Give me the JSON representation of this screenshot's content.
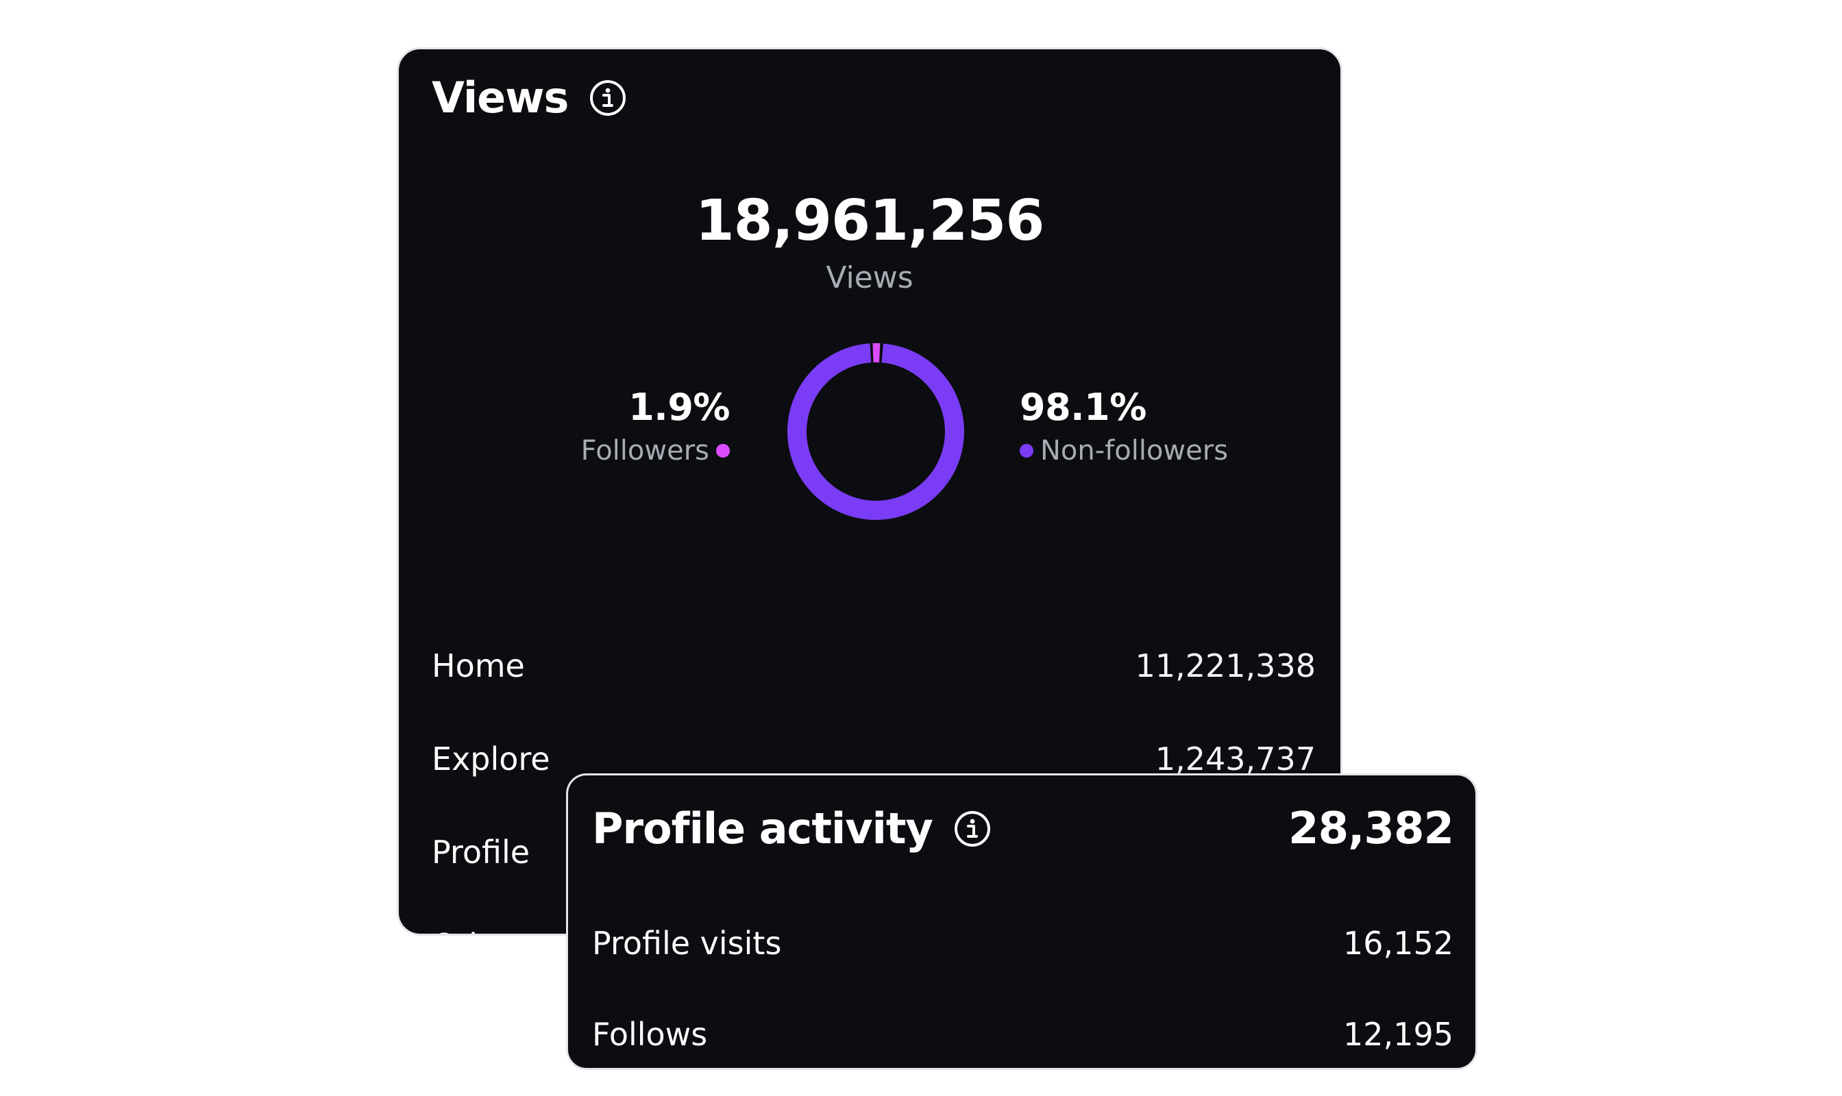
{
  "views": {
    "title": "Views",
    "total": "18,961,256",
    "total_label": "Views",
    "followers": {
      "percent": "1.9%",
      "label": "Followers",
      "share": 0.019,
      "color": "#d94dff"
    },
    "non_followers": {
      "percent": "98.1%",
      "label": "Non-followers",
      "share": 0.981,
      "color": "#7b3cf5"
    },
    "sources": [
      {
        "label": "Home",
        "value": "11,221,338"
      },
      {
        "label": "Explore",
        "value": "1,243,737"
      },
      {
        "label": "Profile",
        "value": ""
      },
      {
        "label": "Other",
        "value": ""
      }
    ]
  },
  "activity": {
    "title": "Profile activity",
    "total": "28,382",
    "rows": [
      {
        "label": "Profile visits",
        "value": "16,152"
      },
      {
        "label": "Follows",
        "value": "12,195"
      }
    ]
  },
  "icons": {
    "info": "info-circle-icon"
  },
  "colors": {
    "card_bg": "#0c0d11",
    "text_secondary": "#a8abb3"
  }
}
